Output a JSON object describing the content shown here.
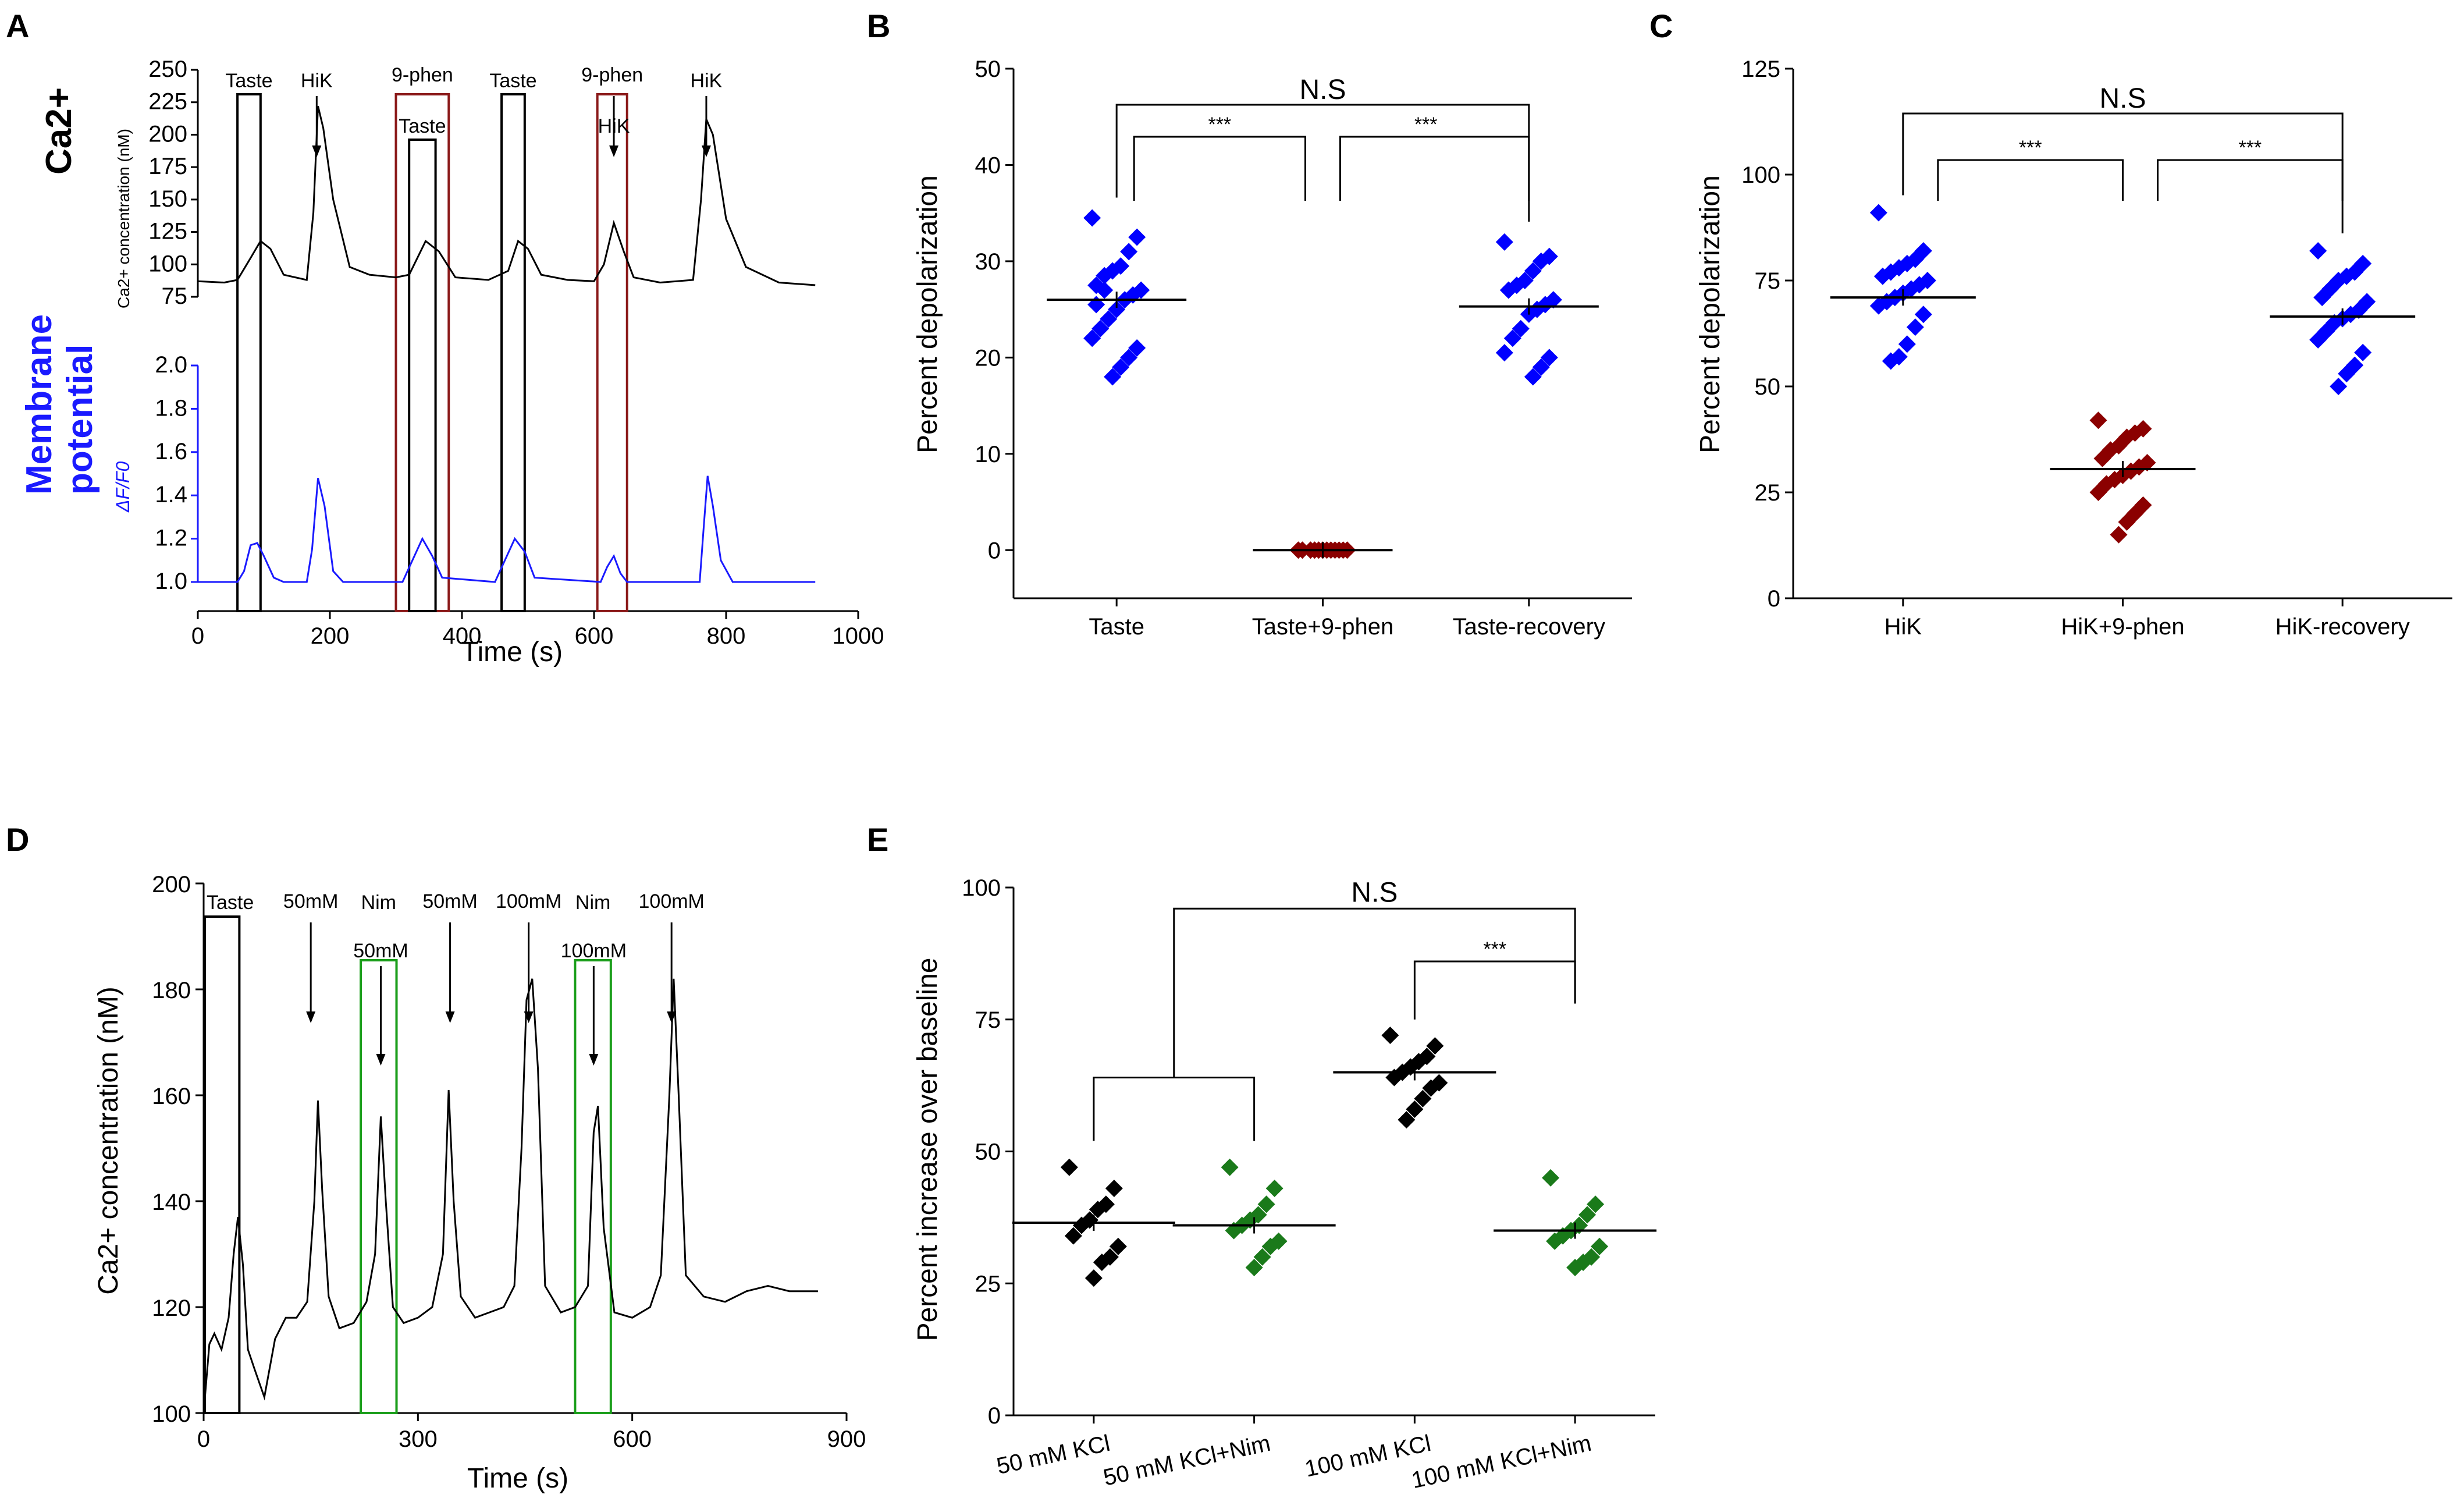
{
  "panel_labels": {
    "a": "A",
    "b": "B",
    "c": "C",
    "d": "D",
    "e": "E"
  },
  "chart_data": [
    {
      "id": "A",
      "type": "line",
      "xlabel": "Time (s)",
      "xlim": [
        0,
        1000
      ],
      "x_ticks": [
        "0",
        "200",
        "400",
        "600",
        "800",
        "1000"
      ],
      "ca_label": "Ca2+",
      "ca_ylabel": "Ca2+ concentration (nM)",
      "ca_ylim": [
        75,
        250
      ],
      "ca_ticks": [
        "75",
        "100",
        "125",
        "150",
        "175",
        "200",
        "225",
        "250"
      ],
      "mp_label_1": "Membrane",
      "mp_label_2": "potential",
      "mp_ylabel": "ΔF/F0",
      "mp_ylim": [
        1.0,
        2.0
      ],
      "mp_ticks": [
        "1.0",
        "1.2",
        "1.4",
        "1.6",
        "1.8",
        "2.0"
      ],
      "stimuli": [
        {
          "label": "Taste",
          "start": 60,
          "end": 95,
          "color": "#000000"
        },
        {
          "label": "HiK",
          "t": 180,
          "color": "#000000"
        },
        {
          "label": "9-phen",
          "start": 300,
          "end": 380,
          "color": "#8b1a1a"
        },
        {
          "label": "Taste",
          "start": 320,
          "end": 360,
          "color": "#000000"
        },
        {
          "label": "Taste",
          "start": 460,
          "end": 495,
          "color": "#000000"
        },
        {
          "label": "9-phen",
          "start": 605,
          "end": 650,
          "color": "#8b1a1a"
        },
        {
          "label": "HiK",
          "t": 630,
          "color": "#000000"
        },
        {
          "label": "HiK",
          "t": 770,
          "color": "#000000"
        }
      ],
      "ca_trace": [
        [
          0,
          87
        ],
        [
          40,
          86
        ],
        [
          60,
          88
        ],
        [
          80,
          105
        ],
        [
          95,
          118
        ],
        [
          110,
          112
        ],
        [
          130,
          92
        ],
        [
          165,
          88
        ],
        [
          175,
          140
        ],
        [
          182,
          222
        ],
        [
          190,
          205
        ],
        [
          205,
          150
        ],
        [
          230,
          98
        ],
        [
          260,
          92
        ],
        [
          300,
          90
        ],
        [
          320,
          92
        ],
        [
          345,
          118
        ],
        [
          365,
          110
        ],
        [
          390,
          90
        ],
        [
          440,
          88
        ],
        [
          470,
          95
        ],
        [
          485,
          118
        ],
        [
          500,
          112
        ],
        [
          520,
          92
        ],
        [
          560,
          88
        ],
        [
          600,
          87
        ],
        [
          615,
          100
        ],
        [
          630,
          132
        ],
        [
          645,
          110
        ],
        [
          660,
          90
        ],
        [
          700,
          86
        ],
        [
          750,
          88
        ],
        [
          762,
          150
        ],
        [
          770,
          212
        ],
        [
          780,
          200
        ],
        [
          800,
          135
        ],
        [
          830,
          98
        ],
        [
          880,
          86
        ],
        [
          935,
          84
        ]
      ],
      "mp_trace": [
        [
          0,
          1.0
        ],
        [
          60,
          1.0
        ],
        [
          70,
          1.05
        ],
        [
          80,
          1.17
        ],
        [
          90,
          1.18
        ],
        [
          100,
          1.12
        ],
        [
          115,
          1.02
        ],
        [
          130,
          1.0
        ],
        [
          165,
          1.0
        ],
        [
          173,
          1.15
        ],
        [
          182,
          1.48
        ],
        [
          192,
          1.35
        ],
        [
          205,
          1.05
        ],
        [
          220,
          1.0
        ],
        [
          310,
          1.0
        ],
        [
          325,
          1.1
        ],
        [
          340,
          1.2
        ],
        [
          355,
          1.12
        ],
        [
          370,
          1.02
        ],
        [
          450,
          1.0
        ],
        [
          465,
          1.1
        ],
        [
          480,
          1.2
        ],
        [
          495,
          1.14
        ],
        [
          510,
          1.02
        ],
        [
          610,
          1.0
        ],
        [
          620,
          1.07
        ],
        [
          630,
          1.12
        ],
        [
          640,
          1.04
        ],
        [
          650,
          1.0
        ],
        [
          760,
          1.0
        ],
        [
          766,
          1.25
        ],
        [
          772,
          1.49
        ],
        [
          780,
          1.35
        ],
        [
          792,
          1.1
        ],
        [
          810,
          1.0
        ],
        [
          935,
          1.0
        ]
      ]
    },
    {
      "id": "B",
      "type": "scatter",
      "ylabel": "Percent depolarization",
      "ylim": [
        -5,
        50
      ],
      "y_ticks": [
        "0",
        "10",
        "20",
        "30",
        "40",
        "50"
      ],
      "categories": [
        "Taste",
        "Taste+9-phen",
        "Taste-recovery"
      ],
      "colors": [
        "#0000ff",
        "#8b0000",
        "#0000ff"
      ],
      "series": [
        {
          "name": "Taste",
          "mean": 26,
          "values": [
            34.5,
            32.5,
            31,
            29.5,
            29,
            28.5,
            27.5,
            27,
            26.5,
            26,
            25,
            24,
            23,
            22,
            21,
            20,
            19,
            18,
            27,
            25.5
          ]
        },
        {
          "name": "Taste+9-phen",
          "mean": 0,
          "values": [
            0,
            0,
            0,
            0,
            0,
            0,
            0,
            0,
            0,
            0,
            0,
            0
          ]
        },
        {
          "name": "Taste-recovery",
          "mean": 25.3,
          "values": [
            32,
            30.5,
            30,
            29,
            28,
            27.5,
            27,
            26,
            25.5,
            25,
            24.5,
            23,
            22,
            20.5,
            20,
            19,
            18
          ]
        }
      ],
      "brackets": [
        {
          "from": 0,
          "to": 2,
          "label": "N.S"
        },
        {
          "from": 0,
          "to": 1,
          "label": "***"
        },
        {
          "from": 1,
          "to": 2,
          "label": "***"
        }
      ]
    },
    {
      "id": "C",
      "type": "scatter",
      "ylabel": "Percent depolarization",
      "ylim": [
        0,
        125
      ],
      "y_ticks": [
        "0",
        "25",
        "50",
        "75",
        "100",
        "125"
      ],
      "categories": [
        "HiK",
        "HiK+9-phen",
        "HiK-recovery"
      ],
      "colors": [
        "#0000ff",
        "#8b0000",
        "#0000ff"
      ],
      "series": [
        {
          "name": "HiK",
          "mean": 71,
          "values": [
            91,
            82,
            80,
            79,
            78,
            77,
            76,
            75,
            74,
            73,
            72,
            71,
            70,
            69,
            67,
            64,
            60,
            57,
            56
          ]
        },
        {
          "name": "HiK+9-phen",
          "mean": 30.5,
          "values": [
            42,
            40,
            39,
            38,
            36,
            35,
            33,
            32,
            31,
            30,
            29,
            28,
            27,
            25,
            22,
            20,
            18,
            15
          ]
        },
        {
          "name": "HiK-recovery",
          "mean": 66.5,
          "values": [
            82,
            79,
            77,
            76,
            75,
            73,
            71,
            70,
            68,
            67,
            66,
            65,
            63,
            61,
            58,
            55,
            53,
            50
          ]
        }
      ],
      "brackets": [
        {
          "from": 0,
          "to": 2,
          "label": "N.S"
        },
        {
          "from": 0,
          "to": 1,
          "label": "***"
        },
        {
          "from": 1,
          "to": 2,
          "label": "***"
        }
      ]
    },
    {
      "id": "D",
      "type": "line",
      "xlabel": "Time (s)",
      "ylabel": "Ca2+ concentration (nM)",
      "xlim": [
        0,
        900
      ],
      "ylim": [
        100,
        200
      ],
      "x_ticks": [
        "0",
        "300",
        "600",
        "900"
      ],
      "y_ticks": [
        "100",
        "120",
        "140",
        "160",
        "180",
        "200"
      ],
      "stimuli": [
        {
          "label": "Taste",
          "start": 0,
          "end": 50,
          "color": "#000000"
        },
        {
          "label": "50mM",
          "t": 150,
          "color": "#000000"
        },
        {
          "label": "Nim",
          "start": 220,
          "end": 270,
          "color": "#1a9e1a"
        },
        {
          "label": "50mM",
          "t": 248,
          "color": "#000000"
        },
        {
          "label": "50mM",
          "t": 345,
          "color": "#000000"
        },
        {
          "label": "100mM",
          "t": 455,
          "color": "#000000"
        },
        {
          "label": "Nim",
          "start": 520,
          "end": 570,
          "color": "#1a9e1a"
        },
        {
          "label": "100mM",
          "t": 546,
          "color": "#000000"
        },
        {
          "label": "100mM",
          "t": 655,
          "color": "#000000"
        }
      ],
      "trace": [
        [
          0,
          100
        ],
        [
          8,
          113
        ],
        [
          15,
          115
        ],
        [
          25,
          112
        ],
        [
          35,
          118
        ],
        [
          42,
          130
        ],
        [
          48,
          137
        ],
        [
          55,
          128
        ],
        [
          62,
          112
        ],
        [
          72,
          108
        ],
        [
          85,
          103
        ],
        [
          100,
          114
        ],
        [
          115,
          118
        ],
        [
          130,
          118
        ],
        [
          145,
          121
        ],
        [
          155,
          140
        ],
        [
          160,
          159
        ],
        [
          166,
          142
        ],
        [
          175,
          122
        ],
        [
          190,
          116
        ],
        [
          210,
          117
        ],
        [
          228,
          121
        ],
        [
          240,
          130
        ],
        [
          248,
          156
        ],
        [
          255,
          140
        ],
        [
          265,
          120
        ],
        [
          280,
          117
        ],
        [
          300,
          118
        ],
        [
          320,
          120
        ],
        [
          335,
          130
        ],
        [
          343,
          161
        ],
        [
          350,
          140
        ],
        [
          360,
          122
        ],
        [
          380,
          118
        ],
        [
          400,
          119
        ],
        [
          420,
          120
        ],
        [
          435,
          124
        ],
        [
          445,
          150
        ],
        [
          452,
          178
        ],
        [
          460,
          182
        ],
        [
          468,
          165
        ],
        [
          478,
          124
        ],
        [
          500,
          119
        ],
        [
          520,
          120
        ],
        [
          538,
          124
        ],
        [
          546,
          153
        ],
        [
          552,
          158
        ],
        [
          560,
          135
        ],
        [
          575,
          119
        ],
        [
          600,
          118
        ],
        [
          625,
          120
        ],
        [
          640,
          126
        ],
        [
          652,
          160
        ],
        [
          658,
          182
        ],
        [
          665,
          160
        ],
        [
          675,
          126
        ],
        [
          700,
          122
        ],
        [
          730,
          121
        ],
        [
          760,
          123
        ],
        [
          790,
          124
        ],
        [
          820,
          123
        ],
        [
          850,
          123
        ],
        [
          860,
          123
        ]
      ]
    },
    {
      "id": "E",
      "type": "scatter",
      "ylabel": "Percent increase over baseline",
      "ylim": [
        0,
        100
      ],
      "y_ticks": [
        "0",
        "25",
        "50",
        "75",
        "100"
      ],
      "categories": [
        "50 mM KCl",
        "50 mM KCl+Nim",
        "100 mM KCl",
        "100 mM KCl+Nim"
      ],
      "colors": [
        "#000000",
        "#1a7a1a",
        "#000000",
        "#1a7a1a"
      ],
      "series": [
        {
          "name": "50 mM KCl",
          "mean": 36.5,
          "values": [
            47,
            43,
            40,
            39,
            37,
            36,
            34,
            32,
            30,
            29,
            26
          ]
        },
        {
          "name": "50 mM KCl+Nim",
          "mean": 36,
          "values": [
            47,
            43,
            40,
            38,
            37,
            36,
            35,
            33,
            32,
            30,
            28
          ]
        },
        {
          "name": "100 mM KCl",
          "mean": 65,
          "values": [
            72,
            70,
            68,
            67,
            66,
            65,
            64,
            63,
            62,
            60,
            58,
            56
          ]
        },
        {
          "name": "100 mM KCl+Nim",
          "mean": 35,
          "values": [
            45,
            40,
            38,
            36,
            35,
            34,
            33,
            32,
            30,
            29,
            28
          ]
        }
      ],
      "brackets": [
        {
          "type": "group",
          "from": 0,
          "to": 1,
          "level": 64
        },
        {
          "type": "sig",
          "from": 2,
          "to": 3,
          "level": 86,
          "label": "***"
        },
        {
          "type": "top",
          "level": 96,
          "label": "N.S"
        }
      ]
    }
  ]
}
